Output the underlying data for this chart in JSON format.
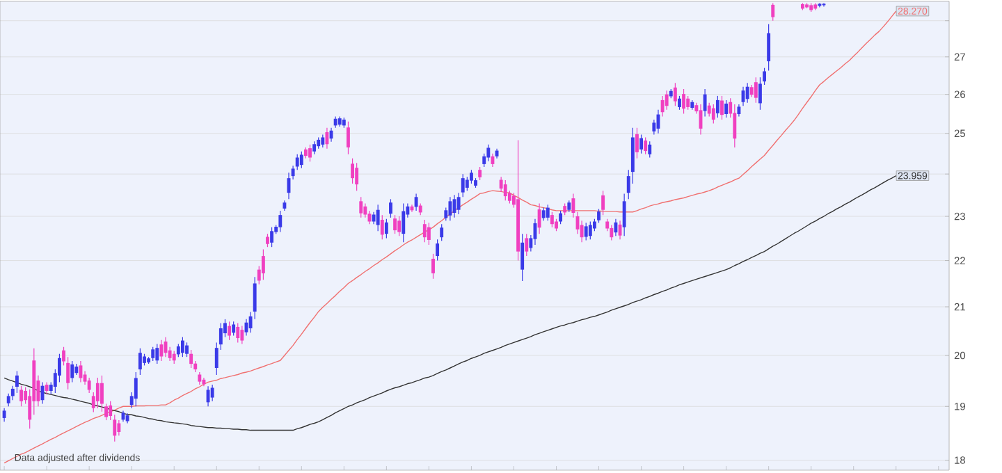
{
  "chart_data": {
    "type": "candlestick",
    "categories": [
      null,
      null,
      null,
      null,
      null,
      null,
      null,
      null,
      null,
      null,
      null,
      null,
      null,
      null,
      null,
      null,
      null,
      null,
      null,
      null,
      null,
      null,
      null,
      null,
      null,
      null,
      null,
      null,
      null,
      null,
      null,
      null,
      null,
      null,
      null,
      null,
      null,
      null,
      null,
      null,
      null,
      null,
      null,
      null,
      null,
      null,
      null,
      null,
      null,
      null,
      null,
      null,
      null,
      null,
      null,
      null,
      null,
      null,
      null,
      null,
      null,
      null,
      null,
      null,
      null,
      null,
      null,
      null,
      null,
      null,
      null,
      null,
      null,
      null,
      null,
      null,
      null,
      null,
      null,
      null,
      null,
      null,
      null,
      null,
      null,
      null,
      null,
      null,
      null,
      null,
      null,
      null,
      null,
      null,
      null,
      null,
      null,
      null,
      null,
      null,
      null,
      null,
      null,
      null,
      null,
      null,
      null,
      null,
      null,
      null,
      null,
      null,
      null,
      null,
      null,
      null,
      null,
      null,
      null,
      null,
      null,
      null,
      null,
      null,
      null,
      null,
      null,
      null,
      null,
      null,
      null,
      null,
      null,
      null,
      null,
      null,
      null,
      null,
      null,
      null,
      null,
      null,
      null,
      null,
      null,
      null,
      null,
      null,
      null,
      null,
      null,
      null,
      null,
      null,
      null,
      null,
      null,
      null,
      null,
      null,
      null,
      null,
      null,
      null,
      null,
      null,
      null,
      null,
      null,
      null,
      null,
      null,
      null,
      null,
      null,
      null,
      null,
      null,
      null,
      null,
      null,
      null,
      null,
      null,
      null,
      null,
      null,
      null,
      null,
      null,
      null,
      null,
      null,
      null,
      null,
      null,
      null,
      null,
      null,
      null,
      null,
      null,
      null,
      null,
      null,
      null,
      null,
      null,
      null,
      null,
      null,
      null,
      null,
      null,
      null,
      null,
      null,
      null,
      null,
      null,
      null,
      null,
      null
    ],
    "ohlc": [
      [
        18.78,
        18.97,
        18.71,
        18.92
      ],
      [
        19.06,
        19.25,
        19.0,
        19.2
      ],
      [
        19.2,
        19.4,
        19.12,
        19.34
      ],
      [
        19.38,
        19.69,
        19.26,
        19.6
      ],
      [
        19.32,
        19.4,
        19.0,
        19.1
      ],
      [
        19.3,
        19.37,
        19.05,
        19.12
      ],
      [
        19.2,
        19.33,
        18.58,
        18.75
      ],
      [
        19.9,
        20.14,
        18.84,
        19.1
      ],
      [
        19.5,
        19.6,
        19.0,
        19.1
      ],
      [
        19.12,
        19.47,
        19.05,
        19.4
      ],
      [
        19.42,
        19.47,
        19.24,
        19.3
      ],
      [
        19.3,
        19.47,
        19.24,
        19.42
      ],
      [
        19.38,
        19.72,
        19.26,
        19.65
      ],
      [
        19.6,
        20.03,
        19.47,
        19.95
      ],
      [
        20.1,
        20.17,
        19.8,
        19.88
      ],
      [
        19.85,
        19.97,
        19.33,
        19.45
      ],
      [
        19.55,
        19.89,
        19.47,
        19.82
      ],
      [
        19.65,
        19.83,
        19.61,
        19.78
      ],
      [
        19.8,
        19.89,
        19.47,
        19.55
      ],
      [
        19.62,
        19.69,
        19.42,
        19.48
      ],
      [
        19.5,
        19.56,
        19.26,
        19.32
      ],
      [
        19.2,
        19.27,
        18.89,
        18.97
      ],
      [
        19.45,
        19.56,
        18.97,
        19.1
      ],
      [
        19.45,
        19.6,
        18.9,
        19.05
      ],
      [
        19.0,
        19.05,
        18.74,
        18.8
      ],
      [
        19.02,
        19.1,
        18.74,
        18.82
      ],
      [
        18.75,
        18.84,
        18.34,
        18.45
      ],
      [
        18.68,
        18.74,
        18.45,
        18.52
      ],
      [
        18.75,
        18.92,
        18.71,
        18.88
      ],
      [
        18.72,
        18.87,
        18.68,
        18.83
      ],
      [
        19.03,
        19.27,
        18.97,
        19.2
      ],
      [
        19.15,
        19.67,
        19.0,
        19.55
      ],
      [
        19.72,
        20.14,
        19.61,
        20.05
      ],
      [
        19.85,
        20.03,
        19.8,
        19.98
      ],
      [
        19.86,
        19.97,
        19.83,
        19.94
      ],
      [
        19.95,
        20.17,
        19.89,
        20.12
      ],
      [
        19.9,
        20.23,
        19.83,
        20.15
      ],
      [
        20.22,
        20.31,
        19.89,
        19.98
      ],
      [
        20.28,
        20.37,
        19.97,
        20.05
      ],
      [
        20.1,
        20.17,
        19.89,
        19.95
      ],
      [
        20.03,
        20.09,
        19.83,
        19.9
      ],
      [
        20.02,
        20.23,
        19.97,
        20.18
      ],
      [
        20.05,
        20.37,
        19.97,
        20.3
      ],
      [
        20.03,
        20.26,
        19.97,
        20.2
      ],
      [
        20.03,
        20.11,
        19.75,
        19.83
      ],
      [
        19.84,
        19.89,
        19.67,
        19.72
      ],
      [
        19.62,
        19.67,
        19.42,
        19.48
      ],
      [
        19.52,
        19.56,
        19.39,
        19.43
      ],
      [
        19.08,
        19.39,
        19.0,
        19.32
      ],
      [
        19.17,
        19.42,
        19.1,
        19.36
      ],
      [
        19.75,
        20.26,
        19.61,
        20.15
      ],
      [
        20.22,
        20.66,
        20.11,
        20.55
      ],
      [
        20.45,
        20.74,
        20.37,
        20.66
      ],
      [
        20.6,
        20.69,
        20.31,
        20.4
      ],
      [
        20.46,
        20.69,
        20.4,
        20.63
      ],
      [
        20.58,
        20.66,
        20.26,
        20.35
      ],
      [
        20.52,
        20.6,
        20.23,
        20.3
      ],
      [
        20.47,
        20.74,
        20.4,
        20.67
      ],
      [
        20.55,
        20.89,
        20.46,
        20.8
      ],
      [
        20.9,
        21.64,
        20.74,
        21.5
      ],
      [
        21.8,
        21.88,
        21.48,
        21.56
      ],
      [
        22.1,
        22.25,
        21.58,
        21.72
      ],
      [
        22.53,
        22.6,
        22.3,
        22.37
      ],
      [
        22.4,
        22.75,
        22.3,
        22.66
      ],
      [
        22.64,
        22.8,
        22.6,
        22.76
      ],
      [
        22.75,
        23.13,
        22.64,
        23.03
      ],
      [
        23.18,
        23.37,
        23.13,
        23.32
      ],
      [
        23.55,
        24.03,
        23.4,
        23.9
      ],
      [
        23.95,
        24.2,
        23.87,
        24.13
      ],
      [
        24.18,
        24.48,
        24.1,
        24.4
      ],
      [
        24.22,
        24.55,
        24.14,
        24.47
      ],
      [
        24.6,
        24.65,
        24.38,
        24.44
      ],
      [
        24.63,
        24.72,
        24.3,
        24.4
      ],
      [
        24.55,
        24.8,
        24.48,
        24.73
      ],
      [
        24.68,
        24.9,
        24.62,
        24.84
      ],
      [
        24.72,
        24.97,
        24.65,
        24.9
      ],
      [
        25.03,
        25.14,
        24.62,
        24.73
      ],
      [
        24.87,
        25.14,
        24.79,
        25.07
      ],
      [
        25.2,
        25.43,
        25.14,
        25.37
      ],
      [
        25.22,
        25.43,
        25.17,
        25.38
      ],
      [
        25.2,
        25.4,
        25.14,
        25.35
      ],
      [
        25.15,
        25.3,
        24.48,
        24.65
      ],
      [
        24.25,
        24.38,
        23.77,
        23.9
      ],
      [
        24.15,
        24.27,
        23.6,
        23.75
      ],
      [
        23.35,
        23.45,
        22.97,
        23.07
      ],
      [
        23.23,
        23.3,
        22.97,
        23.04
      ],
      [
        23.06,
        23.13,
        22.82,
        22.88
      ],
      [
        22.88,
        23.1,
        22.82,
        23.04
      ],
      [
        22.8,
        23.27,
        22.66,
        23.15
      ],
      [
        22.92,
        23.03,
        22.47,
        22.58
      ],
      [
        22.6,
        22.94,
        22.5,
        22.86
      ],
      [
        23.06,
        23.4,
        22.97,
        23.32
      ],
      [
        22.95,
        23.03,
        22.6,
        22.68
      ],
      [
        22.9,
        23.0,
        22.55,
        22.64
      ],
      [
        22.6,
        23.3,
        22.41,
        23.12
      ],
      [
        23.04,
        23.3,
        22.97,
        23.23
      ],
      [
        23.23,
        23.27,
        23.1,
        23.14
      ],
      [
        23.22,
        23.53,
        23.13,
        23.45
      ],
      [
        23.25,
        23.3,
        23.03,
        23.09
      ],
      [
        22.82,
        22.92,
        22.41,
        22.52
      ],
      [
        22.75,
        22.85,
        22.35,
        22.46
      ],
      [
        22.04,
        22.15,
        21.6,
        21.72
      ],
      [
        22.1,
        22.47,
        22.0,
        22.38
      ],
      [
        22.52,
        22.82,
        22.44,
        22.74
      ],
      [
        22.96,
        23.2,
        22.9,
        23.14
      ],
      [
        23.02,
        23.45,
        22.9,
        23.35
      ],
      [
        23.08,
        23.5,
        22.97,
        23.4
      ],
      [
        23.15,
        23.55,
        23.05,
        23.45
      ],
      [
        23.56,
        24.0,
        23.45,
        23.9
      ],
      [
        23.67,
        23.93,
        23.6,
        23.86
      ],
      [
        23.84,
        24.1,
        23.77,
        24.03
      ],
      [
        23.72,
        23.9,
        23.67,
        23.85
      ],
      [
        24.1,
        24.17,
        23.85,
        23.92
      ],
      [
        24.24,
        24.5,
        24.17,
        24.43
      ],
      [
        24.4,
        24.72,
        24.31,
        24.64
      ],
      [
        24.43,
        24.5,
        24.17,
        24.24
      ],
      [
        24.43,
        24.62,
        24.38,
        24.57
      ],
      [
        23.86,
        23.93,
        23.57,
        23.65
      ],
      [
        23.75,
        23.85,
        23.37,
        23.47
      ],
      [
        23.54,
        23.6,
        23.3,
        23.36
      ],
      [
        23.48,
        23.55,
        23.2,
        23.27
      ],
      [
        23.4,
        24.83,
        22.0,
        22.2
      ],
      [
        21.8,
        22.6,
        21.55,
        22.4
      ],
      [
        22.5,
        22.6,
        22.1,
        22.2
      ],
      [
        22.28,
        22.57,
        22.2,
        22.5
      ],
      [
        22.48,
        22.94,
        22.35,
        22.84
      ],
      [
        23.16,
        23.3,
        22.6,
        22.74
      ],
      [
        22.96,
        23.2,
        22.9,
        23.14
      ],
      [
        22.97,
        23.27,
        22.9,
        23.2
      ],
      [
        23.03,
        23.1,
        22.75,
        22.82
      ],
      [
        22.88,
        22.94,
        22.66,
        22.72
      ],
      [
        22.88,
        23.13,
        22.82,
        23.07
      ],
      [
        23.24,
        23.3,
        23.03,
        23.09
      ],
      [
        23.15,
        23.37,
        23.1,
        23.32
      ],
      [
        23.42,
        23.53,
        22.97,
        23.08
      ],
      [
        23.0,
        23.1,
        22.6,
        22.7
      ],
      [
        22.8,
        22.9,
        22.41,
        22.52
      ],
      [
        22.53,
        22.85,
        22.45,
        22.77
      ],
      [
        22.55,
        22.88,
        22.47,
        22.8
      ],
      [
        22.72,
        22.94,
        22.66,
        22.88
      ],
      [
        22.91,
        23.17,
        22.85,
        23.11
      ],
      [
        23.49,
        23.6,
        23.03,
        23.15
      ],
      [
        22.88,
        22.94,
        22.66,
        22.72
      ],
      [
        22.73,
        22.8,
        22.45,
        22.52
      ],
      [
        22.63,
        22.94,
        22.55,
        22.86
      ],
      [
        22.81,
        22.9,
        22.47,
        22.56
      ],
      [
        22.75,
        23.53,
        22.55,
        23.35
      ],
      [
        23.55,
        24.1,
        23.4,
        23.95
      ],
      [
        24.05,
        25.14,
        23.77,
        24.9
      ],
      [
        24.98,
        25.14,
        24.38,
        24.53
      ],
      [
        24.6,
        24.97,
        24.5,
        24.88
      ],
      [
        24.82,
        24.9,
        24.48,
        24.56
      ],
      [
        24.48,
        24.8,
        24.4,
        24.72
      ],
      [
        25.05,
        25.35,
        24.97,
        25.27
      ],
      [
        25.12,
        25.6,
        25.0,
        25.48
      ],
      [
        25.85,
        25.96,
        25.43,
        25.54
      ],
      [
        26.0,
        26.1,
        25.6,
        25.7
      ],
      [
        25.95,
        26.14,
        25.9,
        26.09
      ],
      [
        26.18,
        26.3,
        25.7,
        25.82
      ],
      [
        25.67,
        25.96,
        25.6,
        25.89
      ],
      [
        26.01,
        26.14,
        25.5,
        25.63
      ],
      [
        25.89,
        25.96,
        25.6,
        25.67
      ],
      [
        25.65,
        25.85,
        25.6,
        25.8
      ],
      [
        25.72,
        25.78,
        25.5,
        25.56
      ],
      [
        25.59,
        25.74,
        24.97,
        25.12
      ],
      [
        25.57,
        26.14,
        25.43,
        26.0
      ],
      [
        25.71,
        25.78,
        25.43,
        25.5
      ],
      [
        25.64,
        25.74,
        25.25,
        25.35
      ],
      [
        25.51,
        25.96,
        25.4,
        25.85
      ],
      [
        25.84,
        25.96,
        25.35,
        25.47
      ],
      [
        25.49,
        25.85,
        25.4,
        25.76
      ],
      [
        25.8,
        25.9,
        25.4,
        25.5
      ],
      [
        25.52,
        25.74,
        24.65,
        24.87
      ],
      [
        25.49,
        25.74,
        25.43,
        25.68
      ],
      [
        25.8,
        26.2,
        25.7,
        26.1
      ],
      [
        25.88,
        26.3,
        25.78,
        26.2
      ],
      [
        26.19,
        26.25,
        25.93,
        25.99
      ],
      [
        26.32,
        26.45,
        25.78,
        25.91
      ],
      [
        25.77,
        26.45,
        25.6,
        26.28
      ],
      [
        26.34,
        26.7,
        26.25,
        26.61
      ],
      [
        26.88,
        27.9,
        26.63,
        27.65
      ],
      [
        28.45,
        28.5,
        28.0,
        28.1
      ],
      null,
      null,
      null,
      null,
      null,
      null,
      [
        28.47,
        28.5,
        28.3,
        28.34
      ],
      [
        28.46,
        28.5,
        28.35,
        28.38
      ],
      [
        28.44,
        28.5,
        28.25,
        28.3
      ],
      [
        28.46,
        28.5,
        28.3,
        28.34
      ],
      [
        28.42,
        28.5,
        28.38,
        28.48
      ],
      [
        28.44,
        28.5,
        28.4,
        28.48
      ],
      null,
      null,
      null,
      null,
      null,
      null,
      null,
      null,
      null,
      null,
      null,
      null,
      null,
      null,
      null,
      null,
      null,
      null,
      null,
      null,
      null,
      null,
      null,
      null,
      null,
      null,
      null,
      null,
      null
    ],
    "colors": [
      "#3a3ae8",
      "#3a3ae8",
      "#3a3ae8",
      "#3a3ae8",
      "#f040c0",
      "#f040c0",
      "#f040c0",
      "#f040c0",
      "#f040c0",
      "#3a3ae8",
      "#f040c0",
      "#3a3ae8",
      "#3a3ae8",
      "#3a3ae8",
      "#f040c0",
      "#f040c0",
      "#3a3ae8",
      "#3a3ae8",
      "#f040c0",
      "#f040c0",
      "#f040c0",
      "#f040c0",
      "#f040c0",
      "#f040c0",
      "#f040c0",
      "#f040c0",
      "#f040c0",
      "#f040c0",
      "#3a3ae8",
      "#3a3ae8",
      "#3a3ae8",
      "#3a3ae8",
      "#3a3ae8",
      "#3a3ae8",
      "#3a3ae8",
      "#3a3ae8",
      "#3a3ae8",
      "#f040c0",
      "#f040c0",
      "#f040c0",
      "#f040c0",
      "#3a3ae8",
      "#3a3ae8",
      "#3a3ae8",
      "#f040c0",
      "#f040c0",
      "#f040c0",
      "#f040c0",
      "#3a3ae8",
      "#3a3ae8",
      "#3a3ae8",
      "#3a3ae8",
      "#3a3ae8",
      "#f040c0",
      "#3a3ae8",
      "#f040c0",
      "#f040c0",
      "#3a3ae8",
      "#3a3ae8",
      "#3a3ae8",
      "#f040c0",
      "#f040c0",
      "#f040c0",
      "#3a3ae8",
      "#3a3ae8",
      "#3a3ae8",
      "#3a3ae8",
      "#3a3ae8",
      "#3a3ae8",
      "#3a3ae8",
      "#3a3ae8",
      "#f040c0",
      "#f040c0",
      "#3a3ae8",
      "#3a3ae8",
      "#3a3ae8",
      "#f040c0",
      "#3a3ae8",
      "#3a3ae8",
      "#3a3ae8",
      "#3a3ae8",
      "#f040c0",
      "#f040c0",
      "#f040c0",
      "#f040c0",
      "#f040c0",
      "#f040c0",
      "#3a3ae8",
      "#3a3ae8",
      "#f040c0",
      "#3a3ae8",
      "#3a3ae8",
      "#f040c0",
      "#f040c0",
      "#3a3ae8",
      "#3a3ae8",
      "#f040c0",
      "#3a3ae8",
      "#f040c0",
      "#f040c0",
      "#f040c0",
      "#f040c0",
      "#3a3ae8",
      "#3a3ae8",
      "#3a3ae8",
      "#3a3ae8",
      "#3a3ae8",
      "#3a3ae8",
      "#3a3ae8",
      "#3a3ae8",
      "#3a3ae8",
      "#3a3ae8",
      "#f040c0",
      "#3a3ae8",
      "#3a3ae8",
      "#f040c0",
      "#3a3ae8",
      "#f040c0",
      "#f040c0",
      "#f040c0",
      "#f040c0",
      "#f040c0",
      "#3a3ae8",
      "#f040c0",
      "#3a3ae8",
      "#3a3ae8",
      "#f040c0",
      "#3a3ae8",
      "#3a3ae8",
      "#f040c0",
      "#f040c0",
      "#3a3ae8",
      "#f040c0",
      "#3a3ae8",
      "#f040c0",
      "#f040c0",
      "#f040c0",
      "#3a3ae8",
      "#3a3ae8",
      "#3a3ae8",
      "#3a3ae8",
      "#f040c0",
      "#f040c0",
      "#f040c0",
      "#3a3ae8",
      "#f040c0",
      "#3a3ae8",
      "#3a3ae8",
      "#3a3ae8",
      "#f040c0",
      "#3a3ae8",
      "#f040c0",
      "#3a3ae8",
      "#3a3ae8",
      "#3a3ae8",
      "#f040c0",
      "#f040c0",
      "#3a3ae8",
      "#f040c0",
      "#3a3ae8",
      "#f040c0",
      "#f040c0",
      "#3a3ae8",
      "#f040c0",
      "#f040c0",
      "#3a3ae8",
      "#f040c0",
      "#f040c0",
      "#3a3ae8",
      "#f040c0",
      "#3a3ae8",
      "#f040c0",
      "#f040c0",
      "#3a3ae8",
      "#3a3ae8",
      "#3a3ae8",
      "#f040c0",
      "#f040c0",
      "#3a3ae8",
      "#3a3ae8",
      "#3a3ae8",
      "#f040c0",
      null,
      null,
      null,
      null,
      null,
      null,
      "#f040c0",
      "#f040c0",
      "#f040c0",
      "#f040c0",
      "#3a3ae8",
      "#3a3ae8",
      null,
      null,
      null,
      null,
      null,
      null,
      null,
      null,
      null,
      null,
      null,
      null,
      null,
      null,
      null,
      null,
      null,
      null,
      null,
      null,
      null,
      null,
      null,
      null,
      null,
      null,
      null,
      null,
      null
    ],
    "series": [
      {
        "type": "line",
        "color": "#f07070",
        "values": [
          17.95,
          17.99,
          18.03,
          18.07,
          18.11,
          18.14,
          18.18,
          18.22,
          18.26,
          18.3,
          18.34,
          18.38,
          18.42,
          18.46,
          18.5,
          18.54,
          18.58,
          18.62,
          18.66,
          18.7,
          18.73,
          18.77,
          18.8,
          18.83,
          18.87,
          18.9,
          18.93,
          18.97,
          19.0,
          19.0,
          19.0,
          19.01,
          19.01,
          19.01,
          19.02,
          19.02,
          19.02,
          19.03,
          19.03,
          19.07,
          19.12,
          19.16,
          19.21,
          19.25,
          19.29,
          19.34,
          19.38,
          19.43,
          19.47,
          19.49,
          19.51,
          19.54,
          19.56,
          19.58,
          19.6,
          19.62,
          19.65,
          19.67,
          19.69,
          19.72,
          19.75,
          19.78,
          19.81,
          19.84,
          19.87,
          19.9,
          20.0,
          20.1,
          20.2,
          20.32,
          20.43,
          20.55,
          20.67,
          20.78,
          20.9,
          20.99,
          21.07,
          21.16,
          21.24,
          21.33,
          21.41,
          21.5,
          21.56,
          21.63,
          21.69,
          21.76,
          21.82,
          21.89,
          21.95,
          22.02,
          22.08,
          22.15,
          22.22,
          22.28,
          22.35,
          22.41,
          22.46,
          22.52,
          22.58,
          22.64,
          22.69,
          22.75,
          22.83,
          22.9,
          22.98,
          23.05,
          23.13,
          23.2,
          23.27,
          23.33,
          23.4,
          23.46,
          23.53,
          23.55,
          23.58,
          23.6,
          23.59,
          23.58,
          23.56,
          23.55,
          23.49,
          23.44,
          23.38,
          23.33,
          23.27,
          23.25,
          23.22,
          23.2,
          23.18,
          23.15,
          23.13,
          23.13,
          23.13,
          23.13,
          23.13,
          23.13,
          23.13,
          23.13,
          23.13,
          23.13,
          23.12,
          23.12,
          23.11,
          23.11,
          23.11,
          23.1,
          23.1,
          23.1,
          23.1,
          23.13,
          23.17,
          23.2,
          23.24,
          23.27,
          23.29,
          23.32,
          23.34,
          23.36,
          23.39,
          23.41,
          23.43,
          23.46,
          23.49,
          23.52,
          23.54,
          23.57,
          23.6,
          23.64,
          23.69,
          23.73,
          23.77,
          23.81,
          23.86,
          23.9,
          23.99,
          24.08,
          24.18,
          24.27,
          24.36,
          24.45,
          24.58,
          24.7,
          24.83,
          24.95,
          25.08,
          25.2,
          25.33,
          25.48,
          25.64,
          25.79,
          25.94,
          26.1,
          26.25,
          26.34,
          26.44,
          26.53,
          26.62,
          26.71,
          26.81,
          26.9,
          27.02,
          27.13,
          27.25,
          27.37,
          27.48,
          27.6,
          27.7,
          27.83,
          27.97,
          28.12,
          28.27,
          null,
          null,
          null,
          null,
          null,
          null,
          null,
          null,
          null,
          null,
          null,
          null
        ],
        "value_labels": [
          null,
          null,
          null,
          null,
          null,
          null,
          null,
          null,
          null,
          null,
          null,
          null,
          null,
          null,
          null,
          null,
          null,
          null,
          null,
          null,
          null,
          null,
          null,
          null,
          null,
          null,
          null,
          null,
          null,
          null,
          null,
          null,
          null,
          null,
          null,
          null,
          null,
          null,
          null,
          null,
          null,
          null,
          null,
          null,
          null,
          null,
          null,
          null,
          null,
          null,
          null,
          null,
          null,
          null,
          null,
          null,
          null,
          null,
          null,
          null,
          null,
          null,
          null,
          null,
          null,
          null,
          null,
          null,
          null,
          null,
          null,
          null,
          null,
          null,
          null,
          null,
          null,
          null,
          null,
          null,
          null,
          null,
          null,
          null,
          null,
          null,
          null,
          null,
          null,
          null,
          null,
          null,
          null,
          null,
          null,
          null,
          null,
          null,
          null,
          null,
          null,
          null,
          null,
          null,
          null,
          null,
          null,
          null,
          null,
          null,
          null,
          null,
          null,
          null,
          null,
          null,
          null,
          null,
          null,
          null,
          null,
          null,
          null,
          null,
          null,
          null,
          null,
          null,
          null,
          null,
          null,
          null,
          null,
          null,
          null,
          null,
          null,
          null,
          null,
          null,
          null,
          null,
          null,
          null,
          null,
          null,
          null,
          null,
          null,
          null,
          null,
          null,
          null,
          null,
          null,
          null,
          null,
          null,
          null,
          null,
          null,
          null,
          null,
          null,
          null,
          null,
          null,
          null,
          null,
          null,
          null,
          null,
          null,
          null,
          null,
          null,
          null,
          null,
          null,
          null,
          null,
          null,
          null,
          null,
          null,
          null,
          null,
          null,
          null,
          null,
          null,
          null,
          null,
          null,
          null,
          null,
          null,
          null,
          null,
          null,
          null,
          null,
          null,
          null,
          null,
          null,
          null,
          null,
          null,
          null,
          "28.270",
          null,
          null,
          null,
          null,
          null,
          null,
          null,
          null,
          null,
          null,
          null,
          null
        ]
      },
      {
        "type": "line",
        "color": "#333333",
        "values": [
          19.55,
          19.52,
          19.49,
          19.46,
          19.43,
          19.41,
          19.38,
          19.35,
          19.3,
          19.27,
          19.25,
          19.23,
          19.21,
          19.19,
          19.17,
          19.16,
          19.14,
          19.12,
          19.1,
          19.08,
          19.06,
          19.03,
          19.01,
          18.99,
          18.97,
          18.94,
          18.92,
          18.9,
          18.87,
          18.85,
          18.84,
          18.82,
          18.81,
          18.79,
          18.77,
          18.76,
          18.74,
          18.73,
          18.71,
          18.7,
          18.69,
          18.68,
          18.67,
          18.66,
          18.64,
          18.63,
          18.62,
          18.61,
          18.6,
          18.6,
          18.59,
          18.59,
          18.58,
          18.58,
          18.57,
          18.57,
          18.56,
          18.56,
          18.55,
          18.55,
          18.55,
          18.55,
          18.55,
          18.55,
          18.55,
          18.55,
          18.55,
          18.55,
          18.55,
          18.58,
          18.6,
          18.63,
          18.66,
          18.68,
          18.71,
          18.75,
          18.79,
          18.83,
          18.88,
          18.92,
          18.96,
          19.0,
          19.03,
          19.07,
          19.1,
          19.13,
          19.17,
          19.2,
          19.23,
          19.26,
          19.3,
          19.33,
          19.36,
          19.38,
          19.41,
          19.44,
          19.46,
          19.49,
          19.52,
          19.55,
          19.57,
          19.6,
          19.64,
          19.68,
          19.71,
          19.75,
          19.79,
          19.83,
          19.87,
          19.9,
          19.94,
          19.97,
          20.0,
          20.04,
          20.07,
          20.1,
          20.13,
          20.16,
          20.2,
          20.23,
          20.26,
          20.29,
          20.32,
          20.35,
          20.38,
          20.42,
          20.45,
          20.48,
          20.51,
          20.54,
          20.57,
          20.6,
          20.62,
          20.65,
          20.67,
          20.7,
          20.73,
          20.75,
          20.78,
          20.8,
          20.83,
          20.86,
          20.89,
          20.93,
          20.96,
          20.99,
          21.02,
          21.05,
          21.09,
          21.12,
          21.15,
          21.19,
          21.22,
          21.26,
          21.29,
          21.33,
          21.36,
          21.4,
          21.43,
          21.47,
          21.5,
          21.53,
          21.56,
          21.59,
          21.62,
          21.65,
          21.68,
          21.71,
          21.74,
          21.77,
          21.8,
          21.84,
          21.89,
          21.93,
          21.98,
          22.02,
          22.07,
          22.11,
          22.16,
          22.2,
          22.26,
          22.32,
          22.37,
          22.43,
          22.49,
          22.55,
          22.61,
          22.66,
          22.72,
          22.78,
          22.84,
          22.89,
          22.95,
          23.0,
          23.06,
          23.11,
          23.17,
          23.22,
          23.28,
          23.33,
          23.39,
          23.45,
          23.5,
          23.56,
          23.62,
          23.67,
          23.73,
          23.79,
          23.85,
          23.9,
          23.959,
          null,
          null,
          null,
          null,
          null,
          null,
          null,
          null,
          null,
          null,
          null,
          null
        ],
        "value_labels": [
          null,
          null,
          null,
          null,
          null,
          null,
          null,
          null,
          null,
          null,
          null,
          null,
          null,
          null,
          null,
          null,
          null,
          null,
          null,
          null,
          null,
          null,
          null,
          null,
          null,
          null,
          null,
          null,
          null,
          null,
          null,
          null,
          null,
          null,
          null,
          null,
          null,
          null,
          null,
          null,
          null,
          null,
          null,
          null,
          null,
          null,
          null,
          null,
          null,
          null,
          null,
          null,
          null,
          null,
          null,
          null,
          null,
          null,
          null,
          null,
          null,
          null,
          null,
          null,
          null,
          null,
          null,
          null,
          null,
          null,
          null,
          null,
          null,
          null,
          null,
          null,
          null,
          null,
          null,
          null,
          null,
          null,
          null,
          null,
          null,
          null,
          null,
          null,
          null,
          null,
          null,
          null,
          null,
          null,
          null,
          null,
          null,
          null,
          null,
          null,
          null,
          null,
          null,
          null,
          null,
          null,
          null,
          null,
          null,
          null,
          null,
          null,
          null,
          null,
          null,
          null,
          null,
          null,
          null,
          null,
          null,
          null,
          null,
          null,
          null,
          null,
          null,
          null,
          null,
          null,
          null,
          null,
          null,
          null,
          null,
          null,
          null,
          null,
          null,
          null,
          null,
          null,
          null,
          null,
          null,
          null,
          null,
          null,
          null,
          null,
          null,
          null,
          null,
          null,
          null,
          null,
          null,
          null,
          null,
          null,
          null,
          null,
          null,
          null,
          null,
          null,
          null,
          null,
          null,
          null,
          null,
          null,
          null,
          null,
          null,
          null,
          null,
          null,
          null,
          null,
          null,
          null,
          null,
          null,
          null,
          null,
          null,
          null,
          null,
          null,
          null,
          null,
          null,
          null,
          null,
          null,
          null,
          null,
          null,
          null,
          null,
          null,
          null,
          null,
          null,
          null,
          null,
          null,
          null,
          null,
          "23.959",
          null,
          null,
          null,
          null,
          null,
          null,
          null,
          null,
          null,
          null,
          null,
          null
        ]
      }
    ],
    "ylim": [
      17.82,
      28.55
    ],
    "yticks": [
      18,
      19,
      20,
      21,
      22,
      23,
      {
        "value": 24,
        "label": null
      },
      25,
      26,
      27,
      {
        "value": 28,
        "label": null
      }
    ],
    "log": "y",
    "grid": "y",
    "tick_labels": "y",
    "annotations": [
      "Data adjusted after dividends"
    ]
  }
}
